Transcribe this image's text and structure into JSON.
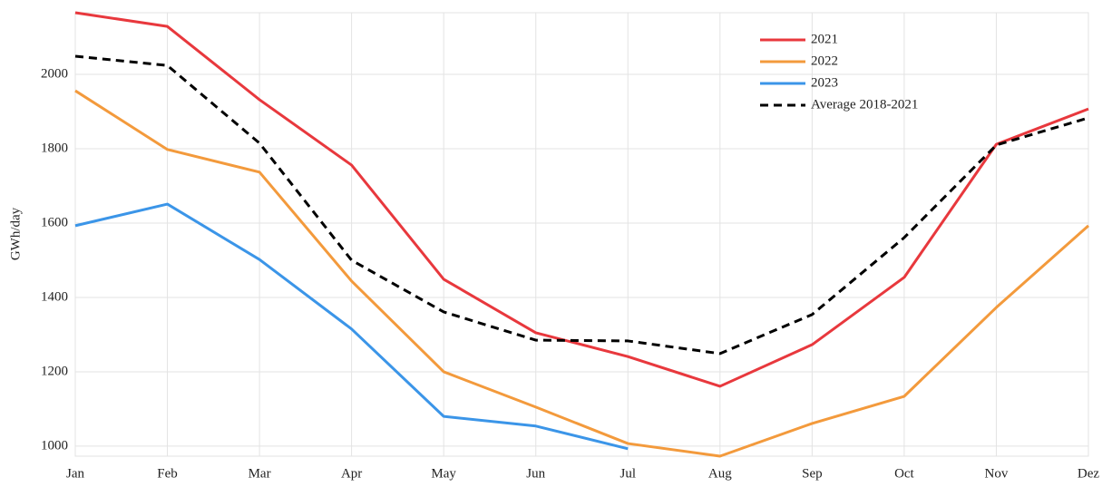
{
  "chart_data": {
    "type": "line",
    "y_label": "GWh/day",
    "categories": [
      "Jan",
      "Feb",
      "Mar",
      "Apr",
      "May",
      "Jun",
      "Jul",
      "Aug",
      "Sep",
      "Oct",
      "Nov",
      "Dez"
    ],
    "series": [
      {
        "name": "2021",
        "color": "#e8383d",
        "dashed": false,
        "values": [
          2166,
          2129,
          1932,
          1756,
          1449,
          1305,
          1241,
          1161,
          1273,
          1454,
          1812,
          1907
        ]
      },
      {
        "name": "2022",
        "color": "#f39a3c",
        "dashed": false,
        "values": [
          1956,
          1798,
          1737,
          1444,
          1200,
          1105,
          1007,
          973,
          1061,
          1134,
          1373,
          1593
        ]
      },
      {
        "name": "2023",
        "color": "#3b95e8",
        "dashed": false,
        "values": [
          1593,
          1651,
          1502,
          1315,
          1080,
          1054,
          993,
          null,
          null,
          null,
          null,
          null
        ]
      },
      {
        "name": "Average 2018-2021",
        "color": "#000000",
        "dashed": true,
        "values": [
          2049,
          2024,
          1815,
          1500,
          1361,
          1285,
          1283,
          1249,
          1354,
          1561,
          1810,
          1883
        ]
      }
    ],
    "ylim": [
      973,
      2166
    ],
    "yticks": [
      1000,
      1200,
      1400,
      1600,
      1800,
      2000
    ],
    "grid": true,
    "legend": "top-right"
  }
}
